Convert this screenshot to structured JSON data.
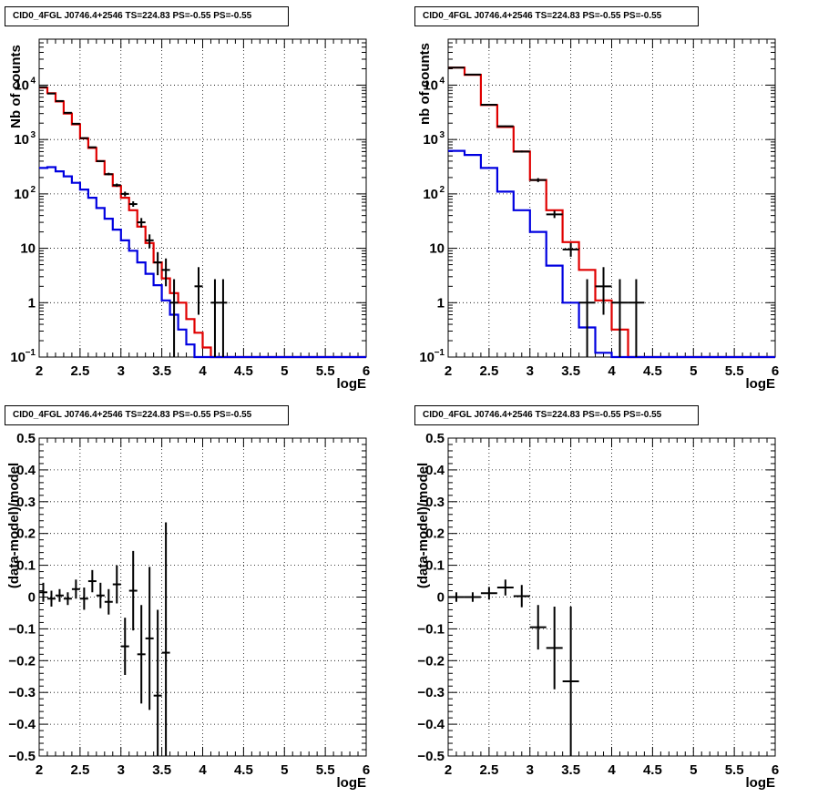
{
  "panels": [
    {
      "title": "CID0_4FGL J0746.4+2546 TS=224.83 PS=-0.55 PS=-0.55",
      "xlabel": "logE",
      "ylabel": "Nb of counts",
      "scale": "log",
      "xlim": [
        2,
        6
      ],
      "ylim": [
        0.1,
        70000
      ],
      "xticks": [
        "2",
        "2.5",
        "3",
        "3.5",
        "4",
        "4.5",
        "5",
        "5.5",
        "6"
      ],
      "yticks": [
        {
          "v": 0.1,
          "label": "10",
          "sup": "−1"
        },
        {
          "v": 1,
          "label": "1"
        },
        {
          "v": 10,
          "label": "10"
        },
        {
          "v": 100,
          "label": "10",
          "sup": "2"
        },
        {
          "v": 1000,
          "label": "10",
          "sup": "3"
        },
        {
          "v": 10000,
          "label": "10",
          "sup": "4"
        }
      ]
    },
    {
      "title": "CID0_4FGL J0746.4+2546 TS=224.83 PS=-0.55 PS=-0.55",
      "xlabel": "logE",
      "ylabel": "nb of counts",
      "scale": "log",
      "xlim": [
        2,
        6
      ],
      "ylim": [
        0.1,
        70000
      ],
      "xticks": [
        "2",
        "2.5",
        "3",
        "3.5",
        "4",
        "4.5",
        "5",
        "5.5",
        "6"
      ],
      "yticks": [
        {
          "v": 0.1,
          "label": "10",
          "sup": "−1"
        },
        {
          "v": 1,
          "label": "1"
        },
        {
          "v": 10,
          "label": "10"
        },
        {
          "v": 100,
          "label": "10",
          "sup": "2"
        },
        {
          "v": 1000,
          "label": "10",
          "sup": "3"
        },
        {
          "v": 10000,
          "label": "10",
          "sup": "4"
        }
      ]
    },
    {
      "title": "CID0_4FGL J0746.4+2546 TS=224.83 PS=-0.55 PS=-0.55",
      "xlabel": "logE",
      "ylabel": "(data-model)/model",
      "scale": "linear",
      "xlim": [
        2,
        6
      ],
      "ylim": [
        -0.5,
        0.5
      ],
      "xticks": [
        "2",
        "2.5",
        "3",
        "3.5",
        "4",
        "4.5",
        "5",
        "5.5",
        "6"
      ],
      "yticks": [
        {
          "v": 0.5,
          "label": "0.5"
        },
        {
          "v": 0.4,
          "label": "0.4"
        },
        {
          "v": 0.3,
          "label": "0.3"
        },
        {
          "v": 0.2,
          "label": "0.2"
        },
        {
          "v": 0.1,
          "label": "0.1"
        },
        {
          "v": 0,
          "label": "0"
        },
        {
          "v": -0.1,
          "label": "−0.1"
        },
        {
          "v": -0.2,
          "label": "−0.2"
        },
        {
          "v": -0.3,
          "label": "−0.3"
        },
        {
          "v": -0.4,
          "label": "−0.4"
        },
        {
          "v": -0.5,
          "label": "−0.5"
        }
      ]
    },
    {
      "title": "CID0_4FGL J0746.4+2546 TS=224.83 PS=-0.55 PS=-0.55",
      "xlabel": "logE",
      "ylabel": "(data-model)/model",
      "scale": "linear",
      "xlim": [
        2,
        6
      ],
      "ylim": [
        -0.5,
        0.5
      ],
      "xticks": [
        "2",
        "2.5",
        "3",
        "3.5",
        "4",
        "4.5",
        "5",
        "5.5",
        "6"
      ],
      "yticks": [
        {
          "v": 0.5,
          "label": "0.5"
        },
        {
          "v": 0.4,
          "label": "0.4"
        },
        {
          "v": 0.3,
          "label": "0.3"
        },
        {
          "v": 0.2,
          "label": "0.2"
        },
        {
          "v": 0.1,
          "label": "0.1"
        },
        {
          "v": 0,
          "label": "0"
        },
        {
          "v": -0.1,
          "label": "−0.1"
        },
        {
          "v": -0.2,
          "label": "−0.2"
        },
        {
          "v": -0.3,
          "label": "−0.3"
        },
        {
          "v": -0.4,
          "label": "−0.4"
        },
        {
          "v": -0.5,
          "label": "−0.5"
        }
      ]
    }
  ],
  "colors": {
    "model_total": "#e00000",
    "model_component": "#0000e0",
    "data": "#000000"
  },
  "chart_data": [
    {
      "type": "line",
      "grid": true,
      "x_scale": "linear",
      "y_scale": "log",
      "xlim": [
        2,
        6
      ],
      "ylim": [
        0.1,
        70000
      ],
      "bin_edges": [
        2.0,
        2.1,
        2.2,
        2.3,
        2.4,
        2.5,
        2.6,
        2.7,
        2.8,
        2.9,
        3.0,
        3.1,
        3.2,
        3.3,
        3.4,
        3.5,
        3.6,
        3.7,
        3.8,
        3.9,
        4.0,
        4.1,
        4.2,
        4.3,
        4.4,
        4.5,
        4.6,
        4.7,
        4.8,
        4.9,
        5.0,
        5.1,
        5.2,
        5.3,
        5.4,
        5.5,
        5.6,
        5.7,
        5.8,
        5.9,
        6.0
      ],
      "series": [
        {
          "kind": "step",
          "color": "#e00000",
          "values": [
            9000,
            7100,
            5000,
            3000,
            1900,
            1050,
            700,
            400,
            230,
            140,
            85,
            50,
            25,
            12.5,
            5.5,
            2.8,
            1.5,
            1.0,
            0.5,
            0.28,
            0.15,
            0.1,
            0.1,
            0.1,
            0.1,
            0.1,
            0.1,
            0.1,
            0.1,
            0.1,
            0.1,
            0.1,
            0.1,
            0.1,
            0.1,
            0.1,
            0.1,
            0.1,
            0.1,
            0.1
          ]
        },
        {
          "kind": "step",
          "color": "#0000e0",
          "values": [
            300,
            310,
            260,
            210,
            160,
            120,
            85,
            55,
            35,
            22,
            14,
            9,
            5.5,
            3.4,
            2.1,
            1.1,
            0.6,
            0.32,
            0.17,
            0.1,
            0.1,
            0.1,
            0.1,
            0.1,
            0.1,
            0.1,
            0.1,
            0.1,
            0.1,
            0.1,
            0.1,
            0.1,
            0.1,
            0.1,
            0.1,
            0.1,
            0.1,
            0.1,
            0.1,
            0.1
          ]
        },
        {
          "kind": "points",
          "color": "#000000",
          "x": [
            2.05,
            2.15,
            2.25,
            2.35,
            2.45,
            2.55,
            2.65,
            2.75,
            2.85,
            2.95,
            3.05,
            3.15,
            3.25,
            3.35,
            3.45,
            3.55,
            3.65,
            3.95,
            4.15,
            4.25
          ],
          "y": [
            9200,
            7000,
            5100,
            3100,
            1950,
            1060,
            720,
            400,
            230,
            145,
            100,
            65,
            30,
            14,
            5.5,
            4,
            1,
            2,
            1,
            1
          ],
          "ylo": [
            9000,
            6900,
            5000,
            3000,
            1900,
            1030,
            700,
            385,
            220,
            135,
            90,
            58,
            24,
            10,
            3.2,
            2,
            0.1,
            0.6,
            0.1,
            0.1
          ],
          "yhi": [
            9400,
            7200,
            5250,
            3200,
            2000,
            1090,
            740,
            415,
            245,
            155,
            110,
            73,
            36,
            18,
            8.5,
            6.5,
            2.7,
            4.5,
            2.7,
            2.7
          ]
        }
      ]
    },
    {
      "type": "line",
      "grid": true,
      "x_scale": "linear",
      "y_scale": "log",
      "xlim": [
        2,
        6
      ],
      "ylim": [
        0.1,
        70000
      ],
      "bin_edges": [
        2.0,
        2.2,
        2.4,
        2.6,
        2.8,
        3.0,
        3.2,
        3.4,
        3.6,
        3.8,
        4.0,
        4.2,
        4.4,
        4.6,
        4.8,
        5.0,
        5.2,
        5.4,
        5.6,
        5.8,
        6.0
      ],
      "series": [
        {
          "kind": "step",
          "color": "#e00000",
          "values": [
            21000,
            15500,
            4300,
            1700,
            600,
            180,
            50,
            13,
            4,
            1.1,
            0.32,
            0.1,
            0.1,
            0.1,
            0.1,
            0.1,
            0.1,
            0.1,
            0.1,
            0.1
          ]
        },
        {
          "kind": "step",
          "color": "#0000e0",
          "values": [
            620,
            520,
            300,
            110,
            50,
            20,
            4.8,
            1.0,
            0.35,
            0.12,
            0.1,
            0.1,
            0.1,
            0.1,
            0.1,
            0.1,
            0.1,
            0.1,
            0.1,
            0.1
          ]
        },
        {
          "kind": "points",
          "color": "#000000",
          "x": [
            2.1,
            2.3,
            2.5,
            2.7,
            2.9,
            3.1,
            3.3,
            3.5,
            3.7,
            3.9,
            4.1,
            4.3
          ],
          "y": [
            21000,
            15600,
            4350,
            1750,
            600,
            180,
            42,
            9.5,
            1,
            2,
            1,
            1
          ],
          "ylo": [
            20800,
            15400,
            4250,
            1700,
            575,
            165,
            36,
            7,
            0.1,
            0.6,
            0.1,
            0.1
          ],
          "yhi": [
            21200,
            15800,
            4450,
            1800,
            625,
            195,
            49,
            12.5,
            2.7,
            4.5,
            2.7,
            2.7
          ]
        }
      ]
    },
    {
      "type": "scatter",
      "grid": true,
      "x_scale": "linear",
      "y_scale": "linear",
      "xlim": [
        2,
        6
      ],
      "ylim": [
        -0.5,
        0.5
      ],
      "series": [
        {
          "kind": "points",
          "color": "#000000",
          "xhalf": 0.05,
          "x": [
            2.05,
            2.15,
            2.25,
            2.35,
            2.45,
            2.55,
            2.65,
            2.75,
            2.85,
            2.95,
            3.05,
            3.15,
            3.25,
            3.35,
            3.45,
            3.55
          ],
          "y": [
            0.015,
            -0.005,
            0.005,
            -0.005,
            0.025,
            -0.005,
            0.05,
            0.005,
            -0.015,
            0.04,
            -0.155,
            0.02,
            -0.18,
            -0.13,
            -0.31,
            -0.175
          ],
          "err": [
            0.03,
            0.025,
            0.02,
            0.02,
            0.03,
            0.035,
            0.035,
            0.04,
            0.04,
            0.06,
            0.09,
            0.125,
            0.155,
            0.225,
            0.27,
            0.41
          ]
        }
      ]
    },
    {
      "type": "scatter",
      "grid": true,
      "x_scale": "linear",
      "y_scale": "linear",
      "xlim": [
        2,
        6
      ],
      "ylim": [
        -0.5,
        0.5
      ],
      "series": [
        {
          "kind": "points",
          "color": "#000000",
          "xhalf": 0.1,
          "x": [
            2.1,
            2.3,
            2.5,
            2.7,
            2.9,
            3.1,
            3.3,
            3.5
          ],
          "y": [
            0.0,
            0.0,
            0.012,
            0.03,
            0.003,
            -0.095,
            -0.16,
            -0.265
          ],
          "err": [
            0.015,
            0.015,
            0.02,
            0.025,
            0.035,
            0.07,
            0.13,
            0.235
          ]
        }
      ]
    }
  ]
}
